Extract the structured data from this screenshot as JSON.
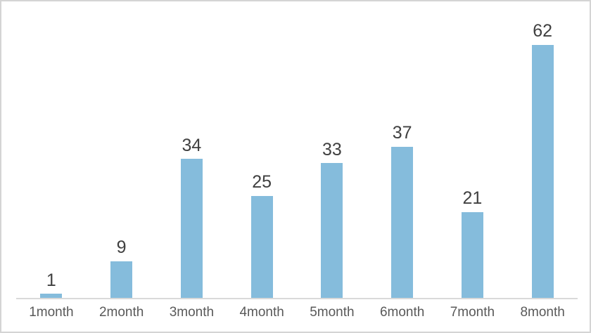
{
  "chart_data": {
    "type": "bar",
    "title": "",
    "xlabel": "",
    "ylabel": "",
    "categories": [
      "1month",
      "2month",
      "3month",
      "4month",
      "5month",
      "6month",
      "7month",
      "8month"
    ],
    "values": [
      1,
      9,
      34,
      25,
      33,
      37,
      21,
      62
    ],
    "ylim": [
      0,
      70
    ],
    "grid": false,
    "legend": false,
    "data_labels_shown": true,
    "y_axis_shown": false
  },
  "colors": {
    "bar_fill": "#85bcdc",
    "data_label": "#404040",
    "axis_label": "#595959",
    "axis_line": "#d9d9d9",
    "frame_border": "#d4d4d4",
    "background": "#ffffff"
  }
}
